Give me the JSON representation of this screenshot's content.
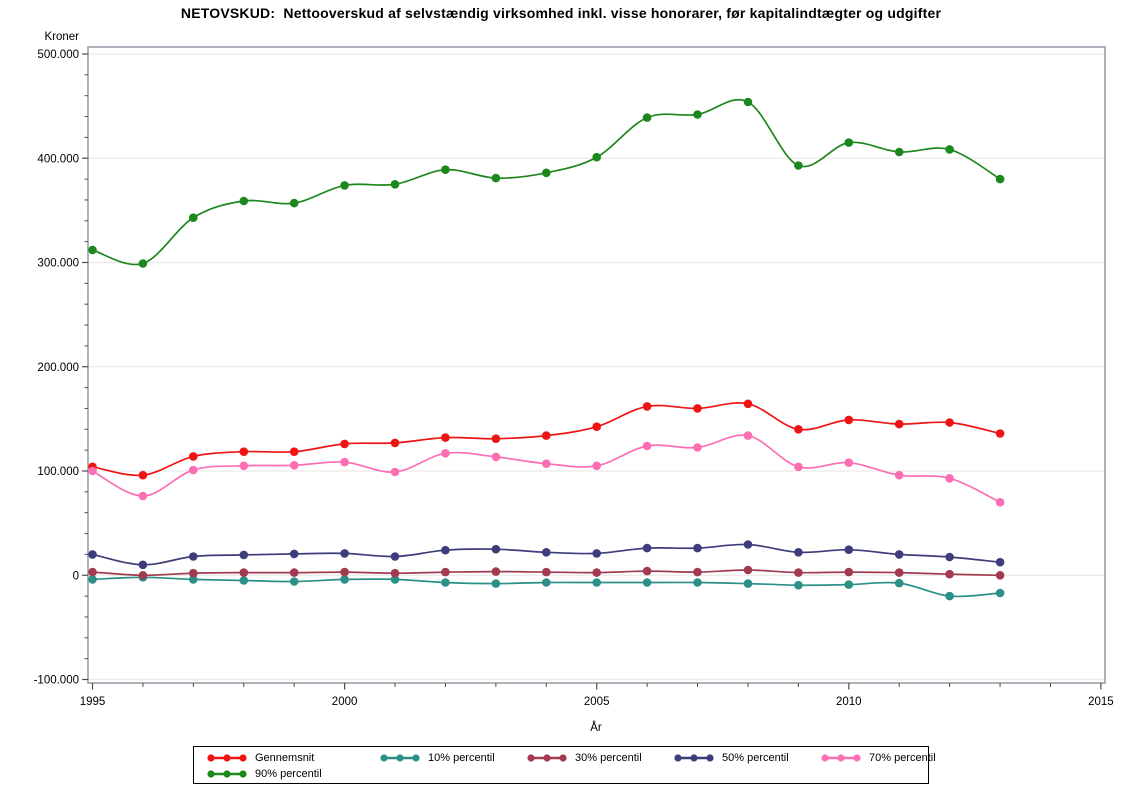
{
  "title_bar": {
    "page_title": "NETOVSKUD:  Nettooverskud af selvstændig virksomhed inkl. visse honorarer, før kapitalindtægter og udgifter"
  },
  "chart_data": {
    "type": "line",
    "title": "NETOVSKUD:  Nettooverskud af selvstændig virksomhed inkl. visse honorarer, før kapitalindtægter og udgifter",
    "ylabel": "Kroner",
    "xlabel": "År",
    "xlim": [
      1995,
      2015
    ],
    "ylim": [
      -100000,
      500000
    ],
    "grid": "horizontal-major-on",
    "legend_position": "bottom-center",
    "x": [
      1995,
      1996,
      1997,
      1998,
      1999,
      2000,
      2001,
      2002,
      2003,
      2004,
      2005,
      2006,
      2007,
      2008,
      2009,
      2010,
      2011,
      2012,
      2013
    ],
    "series": [
      {
        "name": "Gennemsnit",
        "color": "#ee1414",
        "values": [
          104000,
          96000,
          114000,
          118500,
          118500,
          126000,
          127000,
          132000,
          131000,
          134000,
          142500,
          162000,
          160000,
          164500,
          140000,
          149000,
          145000,
          146500,
          136000
        ]
      },
      {
        "name": "10% percentil",
        "color": "#2a9088",
        "values": [
          -4000,
          -2000,
          -4000,
          -5000,
          -6000,
          -4000,
          -4000,
          -7000,
          -8000,
          -7000,
          -7000,
          -7000,
          -7000,
          -8000,
          -9500,
          -9000,
          -7500,
          -20000,
          -17000
        ]
      },
      {
        "name": "30% percentil",
        "color": "#a23a50",
        "values": [
          3000,
          0,
          2000,
          2500,
          2500,
          3000,
          2000,
          3000,
          3500,
          3000,
          2500,
          4000,
          3000,
          5000,
          2500,
          3000,
          2500,
          1000,
          0
        ]
      },
      {
        "name": "50% percentil",
        "color": "#3d3d7c",
        "values": [
          20000,
          10000,
          18000,
          19500,
          20500,
          21000,
          18000,
          24000,
          25000,
          22000,
          21000,
          26000,
          26000,
          29500,
          22000,
          24500,
          20000,
          17500,
          12500
        ]
      },
      {
        "name": "70% percentil",
        "color": "#fc6eb4",
        "values": [
          100000,
          76000,
          101000,
          105000,
          105500,
          108500,
          99000,
          117000,
          113500,
          107000,
          105000,
          124000,
          122500,
          134000,
          104000,
          108000,
          96000,
          93000,
          70000
        ]
      },
      {
        "name": "90% percentil",
        "color": "#1c871c",
        "values": [
          312000,
          299000,
          343000,
          359000,
          357000,
          374000,
          375000,
          389000,
          381000,
          386000,
          401000,
          439000,
          442000,
          454000,
          393000,
          415000,
          406000,
          408500,
          380000
        ]
      }
    ],
    "yticks": [
      {
        "value": 500000,
        "label": "500.000"
      },
      {
        "value": 400000,
        "label": "400.000"
      },
      {
        "value": 300000,
        "label": "300.000"
      },
      {
        "value": 200000,
        "label": "200.000"
      },
      {
        "value": 100000,
        "label": "100.000"
      },
      {
        "value": 0,
        "label": "0"
      },
      {
        "value": -100000,
        "label": "-100.000"
      }
    ],
    "xticks": [
      {
        "value": 1995,
        "label": "1995"
      },
      {
        "value": 2000,
        "label": "2000"
      },
      {
        "value": 2005,
        "label": "2005"
      },
      {
        "value": 2010,
        "label": "2010"
      },
      {
        "value": 2015,
        "label": "2015"
      }
    ],
    "y_minor_step": 20000,
    "x_minor_step": 1,
    "legend_rows": [
      [
        "Gennemsnit",
        "10% percentil",
        "30% percentil",
        "50% percentil",
        "70% percentil"
      ],
      [
        "90% percentil"
      ]
    ]
  },
  "style_colors": {
    "gridline": "#eaeaea",
    "frame": "#98a0a8",
    "tick": "#4d4d4d",
    "text": "#000000"
  }
}
